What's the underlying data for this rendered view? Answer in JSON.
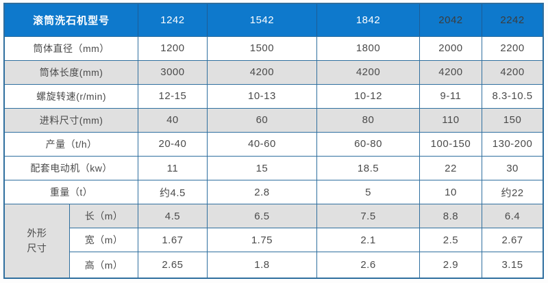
{
  "colors": {
    "header_bg": "#0e79cc",
    "header_text": "#ffffff",
    "header_text_dark": "#3c3c3c",
    "header_divider": "#1d5d96",
    "border": "#2e6e9e",
    "row_shaded_bg": "#e0e0e0",
    "row_bg": "#ffffff",
    "text": "#4a4a4a"
  },
  "table": {
    "header": {
      "title": "滚筒洗石机型号",
      "models": [
        {
          "label": "1242",
          "style": "color:#ffffff"
        },
        {
          "label": "1542",
          "style": "color:#ffffff"
        },
        {
          "label": "1842",
          "style": "color:#ffffff"
        },
        {
          "label": "2042",
          "style": "color:#3c3c3c"
        },
        {
          "label": "2242",
          "style": "color:#3c3c3c"
        }
      ]
    },
    "rows": [
      {
        "label": "筒体直径（mm）",
        "values": [
          "1200",
          "1500",
          "1800",
          "2000",
          "2200"
        ]
      },
      {
        "label": "筒体长度(mm)",
        "values": [
          "3000",
          "4200",
          "4200",
          "4200",
          "4200"
        ]
      },
      {
        "label": "螺旋转速(r/min)",
        "values": [
          "12-15",
          "10-13",
          "10-12",
          "9-11",
          "8.3-10.5"
        ]
      },
      {
        "label": "进料尺寸(mm)",
        "values": [
          "40",
          "60",
          "80",
          "110",
          "150"
        ]
      },
      {
        "label": "产量（t/h）",
        "values": [
          "20-40",
          "40-60",
          "60-80",
          "100-150",
          "130-200"
        ]
      },
      {
        "label": "配套电动机（kw）",
        "values": [
          "11",
          "15",
          "18.5",
          "22",
          "30"
        ]
      },
      {
        "label": "重量（t）",
        "values": [
          "约4.5",
          "2.8",
          "5",
          "10",
          "约22"
        ]
      }
    ],
    "dimensions": {
      "group_label": "外形尺寸",
      "rows": [
        {
          "label": "长（m）",
          "values": [
            "4.5",
            "6.5",
            "7.5",
            "8.8",
            "6.4"
          ]
        },
        {
          "label": "宽（m）",
          "values": [
            "1.67",
            "1.75",
            "2.1",
            "2.5",
            "2.67"
          ]
        },
        {
          "label": "高（m）",
          "values": [
            "2.65",
            "1.8",
            "2.6",
            "2.9",
            "3.15"
          ]
        }
      ]
    }
  }
}
